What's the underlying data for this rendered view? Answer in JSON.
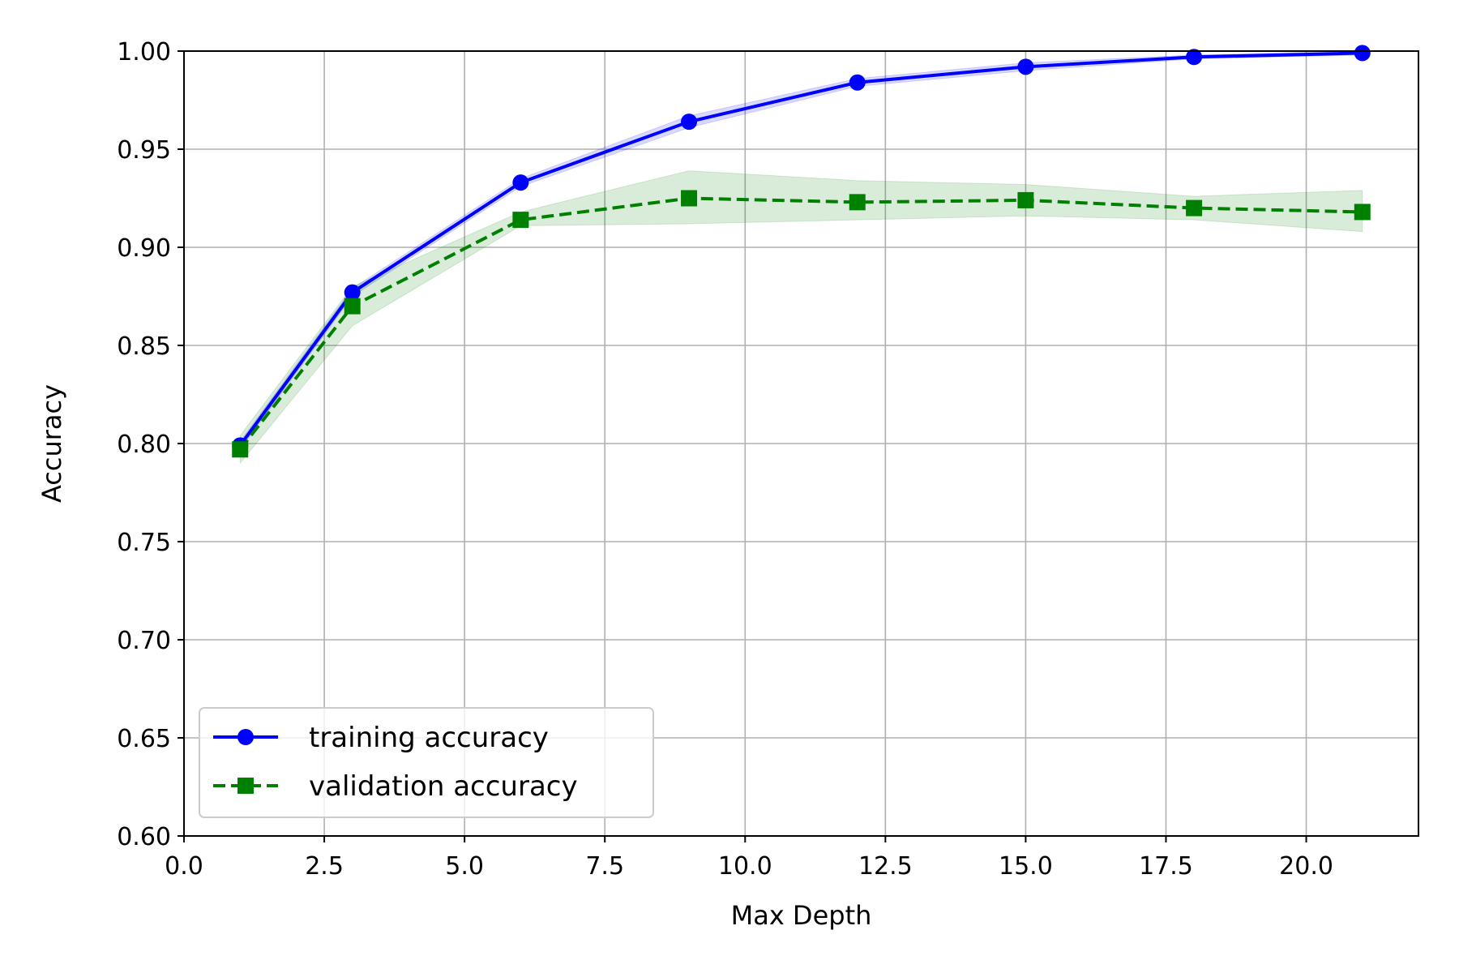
{
  "chart_data": {
    "type": "line",
    "xlabel": "Max Depth",
    "ylabel": "Accuracy",
    "xlim": [
      0,
      22
    ],
    "ylim": [
      0.6,
      1.0
    ],
    "xticks": [
      0.0,
      2.5,
      5.0,
      7.5,
      10.0,
      12.5,
      15.0,
      17.5,
      20.0
    ],
    "xtick_labels": [
      "0.0",
      "2.5",
      "5.0",
      "7.5",
      "10.0",
      "12.5",
      "15.0",
      "17.5",
      "20.0"
    ],
    "yticks": [
      0.6,
      0.65,
      0.7,
      0.75,
      0.8,
      0.85,
      0.9,
      0.95,
      1.0
    ],
    "ytick_labels": [
      "0.60",
      "0.65",
      "0.70",
      "0.75",
      "0.80",
      "0.85",
      "0.90",
      "0.95",
      "1.00"
    ],
    "grid": true,
    "legend_position": "lower-left",
    "x": [
      1,
      3,
      6,
      9,
      12,
      15,
      18,
      21
    ],
    "series": [
      {
        "name": "training accuracy",
        "values": [
          0.799,
          0.877,
          0.933,
          0.964,
          0.984,
          0.992,
          0.997,
          0.999
        ],
        "std_lower": [
          0.797,
          0.875,
          0.931,
          0.961,
          0.982,
          0.99,
          0.996,
          0.998
        ],
        "std_upper": [
          0.801,
          0.879,
          0.935,
          0.967,
          0.986,
          0.994,
          0.998,
          1.0
        ],
        "color": "#0000ff",
        "band_color": "#0000ff",
        "line_style": "solid",
        "marker": "circle"
      },
      {
        "name": "validation accuracy",
        "values": [
          0.797,
          0.87,
          0.914,
          0.925,
          0.923,
          0.924,
          0.92,
          0.918
        ],
        "std_lower": [
          0.79,
          0.86,
          0.911,
          0.912,
          0.914,
          0.916,
          0.914,
          0.908
        ],
        "std_upper": [
          0.804,
          0.88,
          0.918,
          0.939,
          0.934,
          0.932,
          0.926,
          0.929
        ],
        "color": "#008000",
        "band_color": "#008000",
        "line_style": "dashed",
        "marker": "square"
      }
    ]
  }
}
